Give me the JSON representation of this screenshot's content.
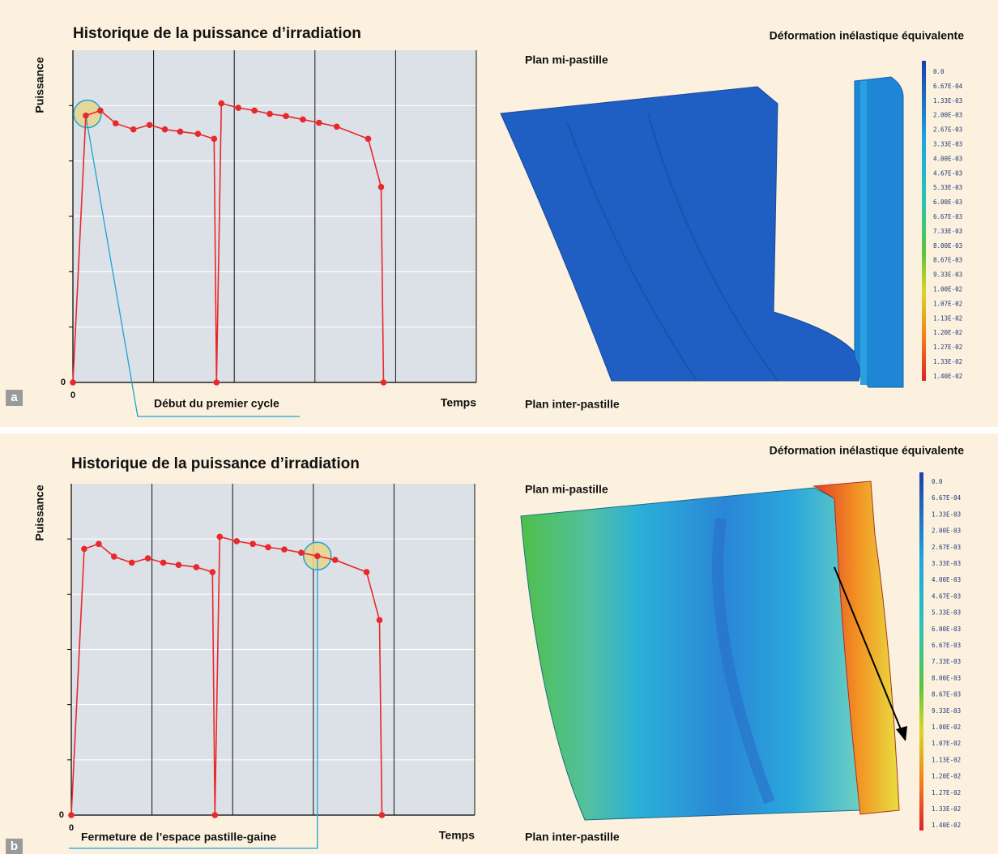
{
  "chart_data": [
    {
      "type": "line",
      "title": "Historique de la puissance d’irradiation",
      "y_label": "Puissance",
      "x_label": "Temps",
      "x": [
        0,
        0.16,
        0.34,
        0.53,
        0.75,
        0.95,
        1.14,
        1.33,
        1.55,
        1.75,
        1.78,
        1.84,
        2.05,
        2.25,
        2.44,
        2.64,
        2.85,
        3.05,
        3.27,
        3.66,
        3.82,
        3.85
      ],
      "values": [
        0,
        4.82,
        4.91,
        4.68,
        4.57,
        4.65,
        4.57,
        4.53,
        4.49,
        4.4,
        0,
        5.04,
        4.96,
        4.91,
        4.85,
        4.81,
        4.75,
        4.69,
        4.62,
        4.4,
        3.53,
        0
      ],
      "color": "#e8282b",
      "xlim": [
        0,
        5
      ],
      "ylim": [
        0,
        6
      ],
      "xticks": [
        0
      ],
      "yticks": [
        0
      ],
      "xgrid": [
        1,
        2,
        3,
        4,
        5
      ],
      "ygrid": [
        1,
        2,
        3,
        4,
        5
      ],
      "annotation": {
        "text": "Début du premier cycle",
        "point": 1
      }
    },
    {
      "type": "line",
      "title": "Historique de la puissance d’irradiation",
      "y_label": "Puissance",
      "x_label": "Temps",
      "x": [
        0,
        0.16,
        0.34,
        0.53,
        0.75,
        0.95,
        1.14,
        1.33,
        1.55,
        1.75,
        1.78,
        1.84,
        2.05,
        2.25,
        2.44,
        2.64,
        2.85,
        3.05,
        3.27,
        3.66,
        3.82,
        3.85
      ],
      "values": [
        0,
        4.82,
        4.91,
        4.68,
        4.57,
        4.65,
        4.57,
        4.53,
        4.49,
        4.4,
        0,
        5.04,
        4.96,
        4.91,
        4.85,
        4.81,
        4.75,
        4.69,
        4.62,
        4.4,
        3.53,
        0
      ],
      "color": "#e8282b",
      "xlim": [
        0,
        5
      ],
      "ylim": [
        0,
        6
      ],
      "xticks": [
        0
      ],
      "yticks": [
        0
      ],
      "xgrid": [
        1,
        2,
        3,
        4,
        5
      ],
      "ygrid": [
        1,
        2,
        3,
        4,
        5
      ],
      "annotation": {
        "text": "Fermeture de l’espace pastille-gaine",
        "point": 17
      }
    }
  ],
  "panels": [
    {
      "letter": "a",
      "title": "Déformation inélastique équivalente",
      "top_label": "Plan mi-pastille",
      "bottom_label": "Plan inter-pastille",
      "colorbar_labels": [
        "0.0",
        "6.67E-04",
        "1.33E-03",
        "2.00E-03",
        "2.67E-03",
        "3.33E-03",
        "4.00E-03",
        "4.67E-03",
        "5.33E-03",
        "6.00E-03",
        "6.67E-03",
        "7.33E-03",
        "8.00E-03",
        "8.67E-03",
        "9.33E-03",
        "1.00E-02",
        "1.07E-02",
        "1.13E-02",
        "1.20E-02",
        "1.27E-02",
        "1.33E-02",
        "1.40E-02"
      ]
    },
    {
      "letter": "b",
      "title": "Déformation inélastique équivalente",
      "top_label": "Plan mi-pastille",
      "bottom_label": "Plan inter-pastille",
      "colorbar_labels": [
        "0.0",
        "6.67E-04",
        "1.33E-03",
        "2.00E-03",
        "2.67E-03",
        "3.33E-03",
        "4.00E-03",
        "4.67E-03",
        "5.33E-03",
        "6.00E-03",
        "6.67E-03",
        "7.33E-03",
        "8.00E-03",
        "8.67E-03",
        "9.33E-03",
        "1.00E-02",
        "1.07E-02",
        "1.13E-02",
        "1.20E-02",
        "1.27E-02",
        "1.33E-02",
        "1.40E-02"
      ]
    }
  ]
}
